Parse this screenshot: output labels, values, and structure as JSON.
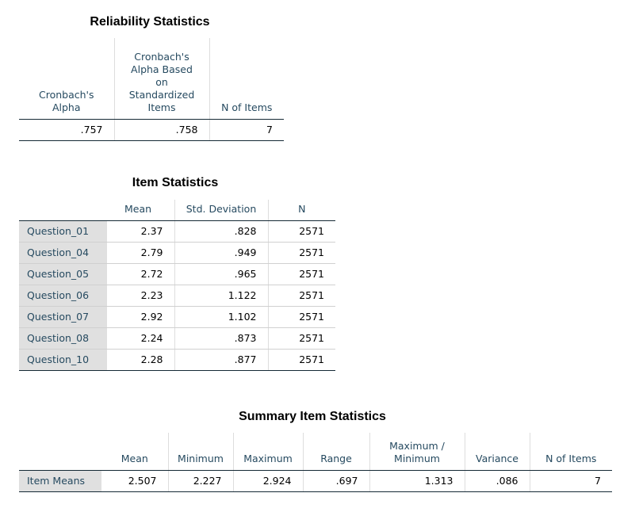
{
  "reliability": {
    "title": "Reliability Statistics",
    "headers": {
      "alpha": [
        "Cronbach's",
        "Alpha"
      ],
      "alpha_std": [
        "Cronbach's",
        "Alpha Based",
        "on",
        "Standardized",
        "Items"
      ],
      "n_items": "N of Items"
    },
    "values": {
      "alpha": ".757",
      "alpha_std": ".758",
      "n_items": "7"
    }
  },
  "item_stats": {
    "title": "Item Statistics",
    "headers": {
      "mean": "Mean",
      "sd": "Std. Deviation",
      "n": "N"
    },
    "rows": [
      {
        "label": "Question_01",
        "mean": "2.37",
        "sd": ".828",
        "n": "2571"
      },
      {
        "label": "Question_04",
        "mean": "2.79",
        "sd": ".949",
        "n": "2571"
      },
      {
        "label": "Question_05",
        "mean": "2.72",
        "sd": ".965",
        "n": "2571"
      },
      {
        "label": "Question_06",
        "mean": "2.23",
        "sd": "1.122",
        "n": "2571"
      },
      {
        "label": "Question_07",
        "mean": "2.92",
        "sd": "1.102",
        "n": "2571"
      },
      {
        "label": "Question_08",
        "mean": "2.24",
        "sd": ".873",
        "n": "2571"
      },
      {
        "label": "Question_10",
        "mean": "2.28",
        "sd": ".877",
        "n": "2571"
      }
    ]
  },
  "summary": {
    "title": "Summary Item Statistics",
    "headers": {
      "mean": "Mean",
      "min": "Minimum",
      "max": "Maximum",
      "range": "Range",
      "ratio": [
        "Maximum /",
        "Minimum"
      ],
      "variance": "Variance",
      "n_items": "N of Items"
    },
    "row": {
      "label": "Item Means",
      "mean": "2.507",
      "min": "2.227",
      "max": "2.924",
      "range": ".697",
      "ratio": "1.313",
      "variance": ".086",
      "n_items": "7"
    }
  }
}
